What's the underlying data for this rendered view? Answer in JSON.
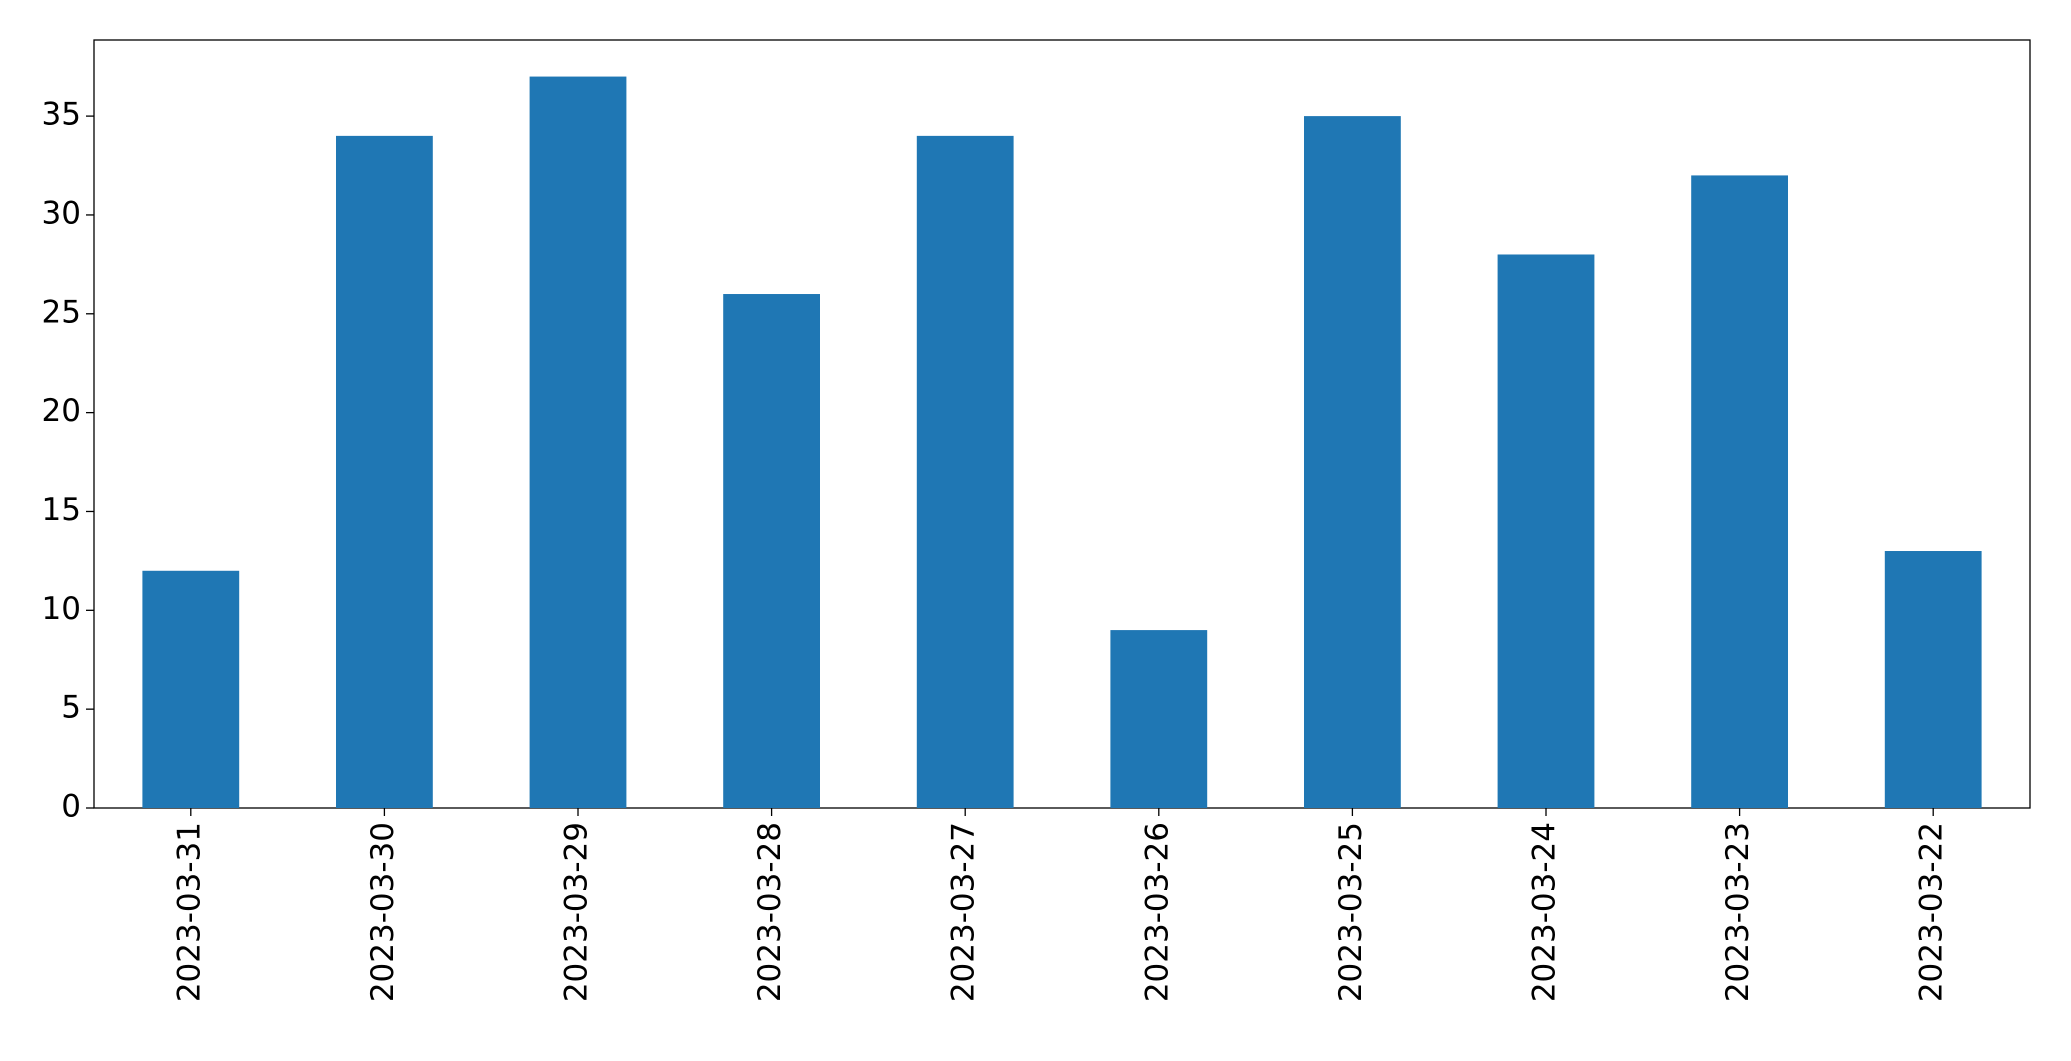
{
  "chart_data": {
    "type": "bar",
    "categories": [
      "2023-03-31",
      "2023-03-30",
      "2023-03-29",
      "2023-03-28",
      "2023-03-27",
      "2023-03-26",
      "2023-03-25",
      "2023-03-24",
      "2023-03-23",
      "2023-03-22"
    ],
    "values": [
      12,
      34,
      37,
      26,
      34,
      9,
      35,
      28,
      32,
      13
    ],
    "color": "#1f77b4",
    "ylim": [
      0,
      38.85
    ],
    "yticks": [
      0,
      5,
      10,
      15,
      20,
      25,
      30,
      35
    ],
    "grid": false
  }
}
